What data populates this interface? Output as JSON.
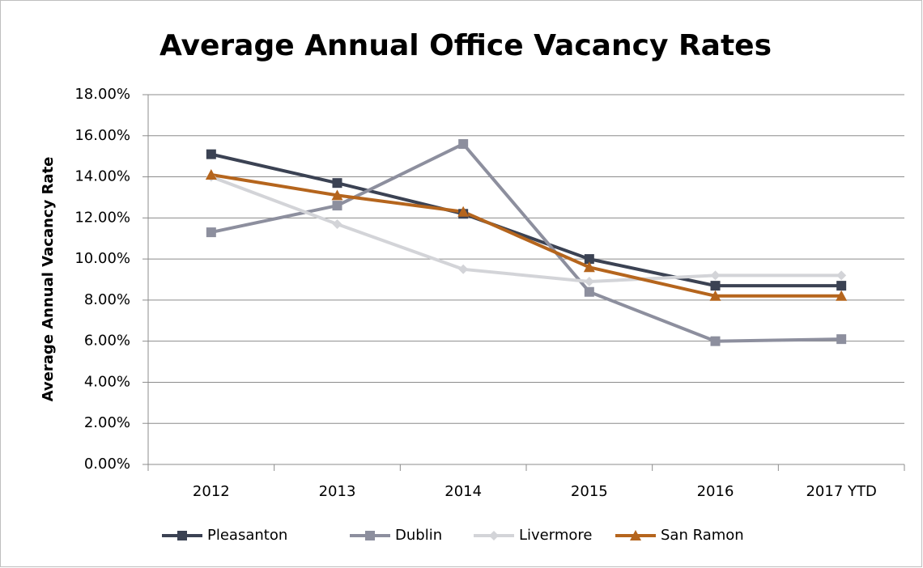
{
  "chart_data": {
    "type": "line",
    "title": "Average Annual Office Vacancy Rates",
    "y_label": "Average Annual Vacancy Rate",
    "categories": [
      "2012",
      "2013",
      "2014",
      "2015",
      "2016",
      "2017 YTD"
    ],
    "series": [
      {
        "name": "Pleasanton",
        "color": "#3b4253",
        "marker": "square",
        "values": [
          15.1,
          13.7,
          12.2,
          10.0,
          8.7,
          8.7
        ]
      },
      {
        "name": "Dublin",
        "color": "#8d8f9e",
        "marker": "square",
        "values": [
          11.3,
          12.6,
          15.6,
          8.4,
          6.0,
          6.1
        ]
      },
      {
        "name": "Livermore",
        "color": "#d3d4d8",
        "marker": "diamond",
        "values": [
          14.0,
          11.7,
          9.5,
          8.9,
          9.2,
          9.2
        ]
      },
      {
        "name": "San Ramon",
        "color": "#b5651d",
        "marker": "triangle",
        "values": [
          14.1,
          13.1,
          12.3,
          9.6,
          8.2,
          8.2
        ]
      }
    ],
    "ylim": [
      0,
      18
    ],
    "yticks": [
      {
        "value": 0,
        "label": "0.00%"
      },
      {
        "value": 2,
        "label": "2.00%"
      },
      {
        "value": 4,
        "label": "4.00%"
      },
      {
        "value": 6,
        "label": "6.00%"
      },
      {
        "value": 8,
        "label": "8.00%"
      },
      {
        "value": 10,
        "label": "10.00%"
      },
      {
        "value": 12,
        "label": "12.00%"
      },
      {
        "value": 14,
        "label": "14.00%"
      },
      {
        "value": 16,
        "label": "16.00%"
      },
      {
        "value": 18,
        "label": "18.00%"
      }
    ],
    "grid": true,
    "legend": "bottom"
  }
}
